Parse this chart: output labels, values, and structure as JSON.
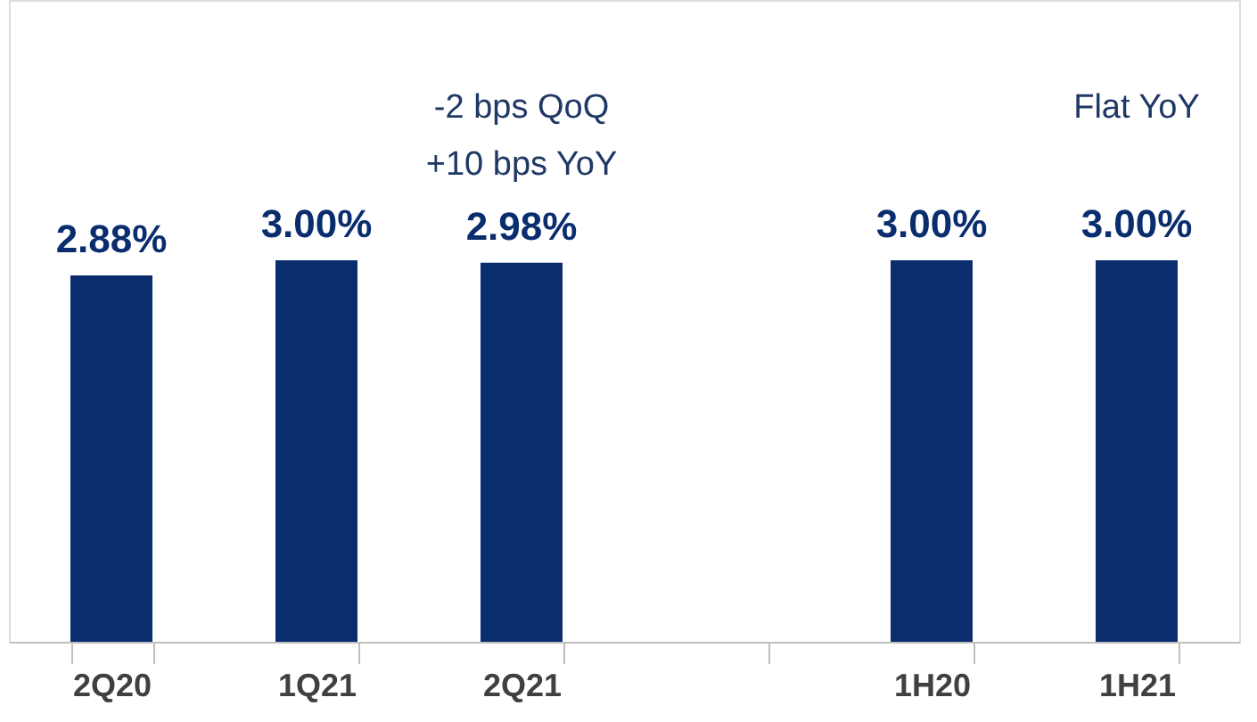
{
  "chart_data": {
    "type": "bar",
    "categories": [
      "2Q20",
      "1Q21",
      "2Q21",
      null,
      "1H20",
      "1H21"
    ],
    "values": [
      2.88,
      3.0,
      2.98,
      null,
      3.0,
      3.0
    ],
    "value_labels": [
      "2.88%",
      "3.00%",
      "2.98%",
      null,
      "3.00%",
      "3.00%"
    ],
    "color": "#0a2d6e",
    "annotations": [
      "-2 bps QoQ\n+10 bps YoY",
      "Flat YoY"
    ]
  }
}
